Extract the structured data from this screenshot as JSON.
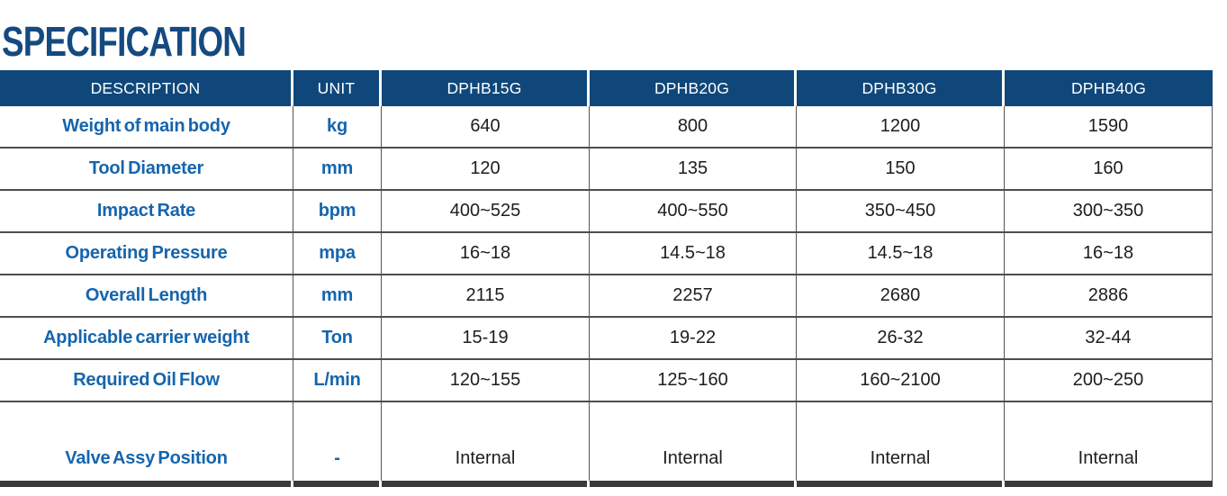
{
  "page": {
    "title": "SPECIFICATION"
  },
  "table": {
    "columns": [
      "DESCRIPTION",
      "UNIT",
      "DPHB15G",
      "DPHB20G",
      "DPHB30G",
      "DPHB40G"
    ],
    "rows": [
      {
        "description": "Weight of main body",
        "unit": "kg",
        "values": [
          "640",
          "800",
          "1200",
          "1590"
        ]
      },
      {
        "description": "Tool Diameter",
        "unit": "mm",
        "values": [
          "120",
          "135",
          "150",
          "160"
        ]
      },
      {
        "description": "Impact Rate",
        "unit": "bpm",
        "values": [
          "400~525",
          "400~550",
          "350~450",
          "300~350"
        ]
      },
      {
        "description": "Operating Pressure",
        "unit": "mpa",
        "values": [
          "16~18",
          "14.5~18",
          "14.5~18",
          "16~18"
        ]
      },
      {
        "description": "Overall Length",
        "unit": "mm",
        "values": [
          "2115",
          "2257",
          "2680",
          "2886"
        ]
      },
      {
        "description": "Applicable carrier weight",
        "unit": "Ton",
        "values": [
          "15-19",
          "19-22",
          "26-32",
          "32-44"
        ]
      },
      {
        "description": "Required Oil Flow",
        "unit": "L/min",
        "values": [
          "120~155",
          "125~160",
          "160~2100",
          "200~250"
        ]
      },
      {
        "description": "Valve Assy Position",
        "unit": "-",
        "values": [
          "Internal",
          "Internal",
          "Internal",
          "Internal"
        ]
      }
    ]
  },
  "colors": {
    "title_text": "#154a80",
    "header_background": "#0f477b",
    "header_text": "#ffffff",
    "description_text": "#1565ad",
    "value_text": "#1d1d1d",
    "row_border": "#4d4d4d",
    "bottom_bar": "#3a3a3a"
  }
}
